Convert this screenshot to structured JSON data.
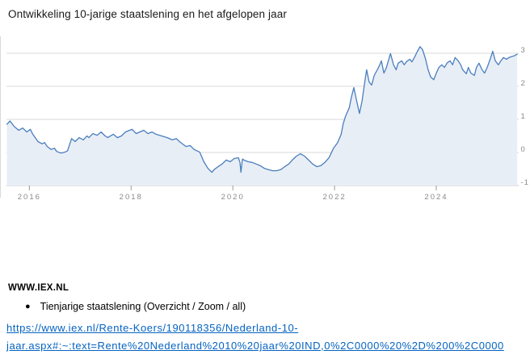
{
  "title": "Ontwikkeling 10-jarige staatslening en het afgelopen jaar",
  "source": {
    "site": "WWW.IEX.NL",
    "bullet": "Tienjarige staatslening (Overzicht / Zoom / all)",
    "link_line1": "https://www.iex.nl/Rente-Koers/190118356/Nederland-10-",
    "link_line2": "jaar.aspx#:~:text=Rente%20Nederland%2010%20jaar%20IND,0%2C0000%20%2D%200%2C0000",
    "link_href": "https://www.iex.nl/Rente-Koers/190118356/Nederland-10-jaar.aspx#:~:text=Rente%20Nederland%2010%20jaar%20IND,0%2C0000%20%2D%200%2C0000"
  },
  "colors": {
    "line": "#4a7ebd",
    "fill": "#e8eef6",
    "grid": "#d9d9d9",
    "axis_line": "#c9c9c9",
    "tick": "#9a9a9a",
    "tick_label": "#8a8a8a",
    "link": "#0563c1"
  },
  "chart_data": {
    "type": "area",
    "title": "Ontwikkeling 10-jarige staatslening en het afgelopen jaar",
    "xlabel": "",
    "ylabel": "",
    "x_ticks": [
      2016,
      2018,
      2020,
      2022,
      2024
    ],
    "y_ticks": [
      3,
      2,
      1,
      0,
      -1
    ],
    "xlim": [
      2015.55,
      2025.62
    ],
    "ylim": [
      -1,
      3.45
    ],
    "grid": true,
    "legend": false,
    "series": [
      {
        "name": "10-jarige staatslening",
        "points": [
          [
            2015.56,
            0.85
          ],
          [
            2015.62,
            0.95
          ],
          [
            2015.7,
            0.79
          ],
          [
            2015.79,
            0.67
          ],
          [
            2015.87,
            0.74
          ],
          [
            2015.95,
            0.62
          ],
          [
            2016.02,
            0.7
          ],
          [
            2016.06,
            0.57
          ],
          [
            2016.17,
            0.33
          ],
          [
            2016.25,
            0.26
          ],
          [
            2016.3,
            0.3
          ],
          [
            2016.35,
            0.18
          ],
          [
            2016.43,
            0.09
          ],
          [
            2016.49,
            0.13
          ],
          [
            2016.54,
            0.03
          ],
          [
            2016.62,
            -0.02
          ],
          [
            2016.7,
            0.01
          ],
          [
            2016.75,
            0.05
          ],
          [
            2016.83,
            0.42
          ],
          [
            2016.9,
            0.33
          ],
          [
            2016.98,
            0.45
          ],
          [
            2017.06,
            0.38
          ],
          [
            2017.13,
            0.5
          ],
          [
            2017.17,
            0.45
          ],
          [
            2017.25,
            0.57
          ],
          [
            2017.33,
            0.52
          ],
          [
            2017.41,
            0.62
          ],
          [
            2017.49,
            0.5
          ],
          [
            2017.54,
            0.45
          ],
          [
            2017.65,
            0.55
          ],
          [
            2017.73,
            0.45
          ],
          [
            2017.81,
            0.5
          ],
          [
            2017.89,
            0.62
          ],
          [
            2017.97,
            0.67
          ],
          [
            2018.02,
            0.7
          ],
          [
            2018.1,
            0.57
          ],
          [
            2018.17,
            0.62
          ],
          [
            2018.25,
            0.67
          ],
          [
            2018.33,
            0.57
          ],
          [
            2018.41,
            0.62
          ],
          [
            2018.49,
            0.55
          ],
          [
            2018.6,
            0.5
          ],
          [
            2018.71,
            0.45
          ],
          [
            2018.81,
            0.38
          ],
          [
            2018.89,
            0.42
          ],
          [
            2018.95,
            0.33
          ],
          [
            2019.08,
            0.18
          ],
          [
            2019.16,
            0.21
          ],
          [
            2019.24,
            0.09
          ],
          [
            2019.35,
            0.01
          ],
          [
            2019.43,
            -0.28
          ],
          [
            2019.51,
            -0.48
          ],
          [
            2019.59,
            -0.6
          ],
          [
            2019.63,
            -0.52
          ],
          [
            2019.71,
            -0.43
          ],
          [
            2019.79,
            -0.35
          ],
          [
            2019.87,
            -0.23
          ],
          [
            2019.95,
            -0.28
          ],
          [
            2020.03,
            -0.18
          ],
          [
            2020.11,
            -0.16
          ],
          [
            2020.14,
            -0.3
          ],
          [
            2020.16,
            -0.6
          ],
          [
            2020.19,
            -0.2
          ],
          [
            2020.22,
            -0.23
          ],
          [
            2020.3,
            -0.28
          ],
          [
            2020.38,
            -0.3
          ],
          [
            2020.46,
            -0.35
          ],
          [
            2020.54,
            -0.4
          ],
          [
            2020.62,
            -0.48
          ],
          [
            2020.7,
            -0.52
          ],
          [
            2020.78,
            -0.55
          ],
          [
            2020.86,
            -0.55
          ],
          [
            2020.94,
            -0.52
          ],
          [
            2021.02,
            -0.43
          ],
          [
            2021.1,
            -0.35
          ],
          [
            2021.17,
            -0.23
          ],
          [
            2021.25,
            -0.11
          ],
          [
            2021.33,
            -0.04
          ],
          [
            2021.41,
            -0.11
          ],
          [
            2021.49,
            -0.23
          ],
          [
            2021.57,
            -0.35
          ],
          [
            2021.65,
            -0.43
          ],
          [
            2021.73,
            -0.4
          ],
          [
            2021.81,
            -0.3
          ],
          [
            2021.89,
            -0.16
          ],
          [
            2021.98,
            0.13
          ],
          [
            2022.06,
            0.3
          ],
          [
            2022.13,
            0.55
          ],
          [
            2022.17,
            0.87
          ],
          [
            2022.22,
            1.11
          ],
          [
            2022.29,
            1.35
          ],
          [
            2022.33,
            1.67
          ],
          [
            2022.38,
            1.96
          ],
          [
            2022.44,
            1.52
          ],
          [
            2022.49,
            1.18
          ],
          [
            2022.54,
            1.55
          ],
          [
            2022.6,
            2.2
          ],
          [
            2022.63,
            2.5
          ],
          [
            2022.68,
            2.13
          ],
          [
            2022.73,
            2.04
          ],
          [
            2022.78,
            2.33
          ],
          [
            2022.84,
            2.5
          ],
          [
            2022.89,
            2.65
          ],
          [
            2022.92,
            2.77
          ],
          [
            2022.97,
            2.4
          ],
          [
            2023.02,
            2.57
          ],
          [
            2023.1,
            2.99
          ],
          [
            2023.16,
            2.65
          ],
          [
            2023.21,
            2.5
          ],
          [
            2023.25,
            2.7
          ],
          [
            2023.32,
            2.77
          ],
          [
            2023.37,
            2.65
          ],
          [
            2023.41,
            2.74
          ],
          [
            2023.48,
            2.82
          ],
          [
            2023.52,
            2.74
          ],
          [
            2023.57,
            2.87
          ],
          [
            2023.63,
            3.06
          ],
          [
            2023.68,
            3.2
          ],
          [
            2023.73,
            3.11
          ],
          [
            2023.79,
            2.82
          ],
          [
            2023.84,
            2.5
          ],
          [
            2023.89,
            2.28
          ],
          [
            2023.95,
            2.2
          ],
          [
            2024.0,
            2.4
          ],
          [
            2024.05,
            2.57
          ],
          [
            2024.11,
            2.65
          ],
          [
            2024.16,
            2.57
          ],
          [
            2024.21,
            2.7
          ],
          [
            2024.27,
            2.77
          ],
          [
            2024.32,
            2.65
          ],
          [
            2024.37,
            2.87
          ],
          [
            2024.43,
            2.77
          ],
          [
            2024.48,
            2.65
          ],
          [
            2024.52,
            2.5
          ],
          [
            2024.59,
            2.38
          ],
          [
            2024.63,
            2.57
          ],
          [
            2024.68,
            2.4
          ],
          [
            2024.75,
            2.33
          ],
          [
            2024.79,
            2.57
          ],
          [
            2024.84,
            2.7
          ],
          [
            2024.9,
            2.5
          ],
          [
            2024.95,
            2.4
          ],
          [
            2025.0,
            2.57
          ],
          [
            2025.06,
            2.82
          ],
          [
            2025.11,
            3.06
          ],
          [
            2025.16,
            2.77
          ],
          [
            2025.22,
            2.65
          ],
          [
            2025.27,
            2.77
          ],
          [
            2025.32,
            2.87
          ],
          [
            2025.38,
            2.82
          ],
          [
            2025.43,
            2.87
          ],
          [
            2025.48,
            2.9
          ],
          [
            2025.53,
            2.92
          ],
          [
            2025.59,
            2.97
          ]
        ]
      }
    ]
  }
}
